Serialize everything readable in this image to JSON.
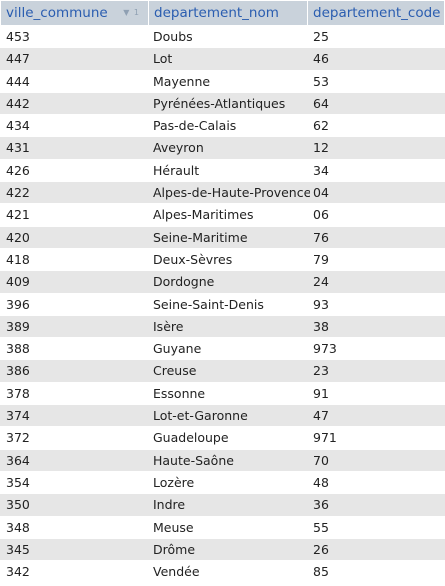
{
  "table": {
    "columns": [
      {
        "label": "ville_commune",
        "sort_indicator": "▼ 1"
      },
      {
        "label": "departement_nom"
      },
      {
        "label": "departement_code"
      }
    ],
    "rows": [
      {
        "ville_commune": "453",
        "departement_nom": "Doubs",
        "departement_code": "25"
      },
      {
        "ville_commune": "447",
        "departement_nom": "Lot",
        "departement_code": "46"
      },
      {
        "ville_commune": "444",
        "departement_nom": "Mayenne",
        "departement_code": "53"
      },
      {
        "ville_commune": "442",
        "departement_nom": "Pyrénées-Atlantiques",
        "departement_code": "64"
      },
      {
        "ville_commune": "434",
        "departement_nom": "Pas-de-Calais",
        "departement_code": "62"
      },
      {
        "ville_commune": "431",
        "departement_nom": "Aveyron",
        "departement_code": "12"
      },
      {
        "ville_commune": "426",
        "departement_nom": "Hérault",
        "departement_code": "34"
      },
      {
        "ville_commune": "422",
        "departement_nom": "Alpes-de-Haute-Provence",
        "departement_code": "04"
      },
      {
        "ville_commune": "421",
        "departement_nom": "Alpes-Maritimes",
        "departement_code": "06"
      },
      {
        "ville_commune": "420",
        "departement_nom": "Seine-Maritime",
        "departement_code": "76"
      },
      {
        "ville_commune": "418",
        "departement_nom": "Deux-Sèvres",
        "departement_code": "79"
      },
      {
        "ville_commune": "409",
        "departement_nom": "Dordogne",
        "departement_code": "24"
      },
      {
        "ville_commune": "396",
        "departement_nom": "Seine-Saint-Denis",
        "departement_code": "93"
      },
      {
        "ville_commune": "389",
        "departement_nom": "Isère",
        "departement_code": "38"
      },
      {
        "ville_commune": "388",
        "departement_nom": "Guyane",
        "departement_code": "973"
      },
      {
        "ville_commune": "386",
        "departement_nom": "Creuse",
        "departement_code": "23"
      },
      {
        "ville_commune": "378",
        "departement_nom": "Essonne",
        "departement_code": "91"
      },
      {
        "ville_commune": "374",
        "departement_nom": "Lot-et-Garonne",
        "departement_code": "47"
      },
      {
        "ville_commune": "372",
        "departement_nom": "Guadeloupe",
        "departement_code": "971"
      },
      {
        "ville_commune": "364",
        "departement_nom": "Haute-Saône",
        "departement_code": "70"
      },
      {
        "ville_commune": "354",
        "departement_nom": "Lozère",
        "departement_code": "48"
      },
      {
        "ville_commune": "350",
        "departement_nom": "Indre",
        "departement_code": "36"
      },
      {
        "ville_commune": "348",
        "departement_nom": "Meuse",
        "departement_code": "55"
      },
      {
        "ville_commune": "345",
        "departement_nom": "Drôme",
        "departement_code": "26"
      },
      {
        "ville_commune": "342",
        "departement_nom": "Vendée",
        "departement_code": "85"
      }
    ]
  },
  "colors": {
    "header_bg": "#c9d2db",
    "header_text": "#2a5db0",
    "row_alt_bg": "#e6e6e6",
    "row_bg": "#ffffff"
  }
}
